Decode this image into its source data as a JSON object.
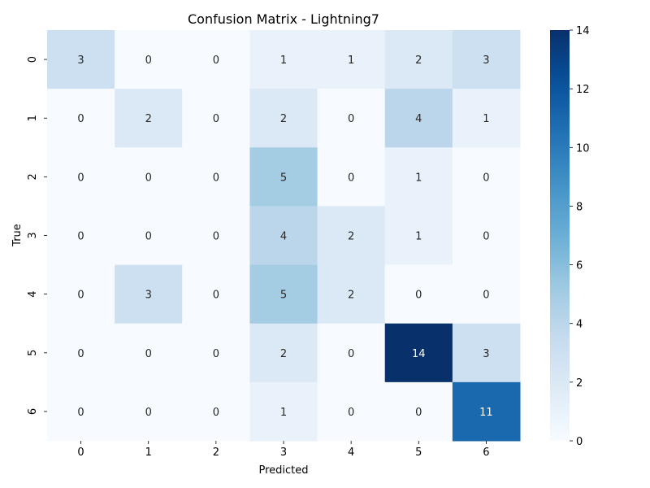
{
  "chart_data": {
    "type": "heatmap",
    "title": "Confusion Matrix - Lightning7",
    "xlabel": "Predicted",
    "ylabel": "True",
    "x_categories": [
      "0",
      "1",
      "2",
      "3",
      "4",
      "5",
      "6"
    ],
    "y_categories": [
      "0",
      "1",
      "2",
      "3",
      "4",
      "5",
      "6"
    ],
    "values": [
      [
        3,
        0,
        0,
        1,
        1,
        2,
        3
      ],
      [
        0,
        2,
        0,
        2,
        0,
        4,
        1
      ],
      [
        0,
        0,
        0,
        5,
        0,
        1,
        0
      ],
      [
        0,
        0,
        0,
        4,
        2,
        1,
        0
      ],
      [
        0,
        3,
        0,
        5,
        2,
        0,
        0
      ],
      [
        0,
        0,
        0,
        2,
        0,
        14,
        3
      ],
      [
        0,
        0,
        0,
        1,
        0,
        0,
        11
      ]
    ],
    "colormap": "Blues",
    "vmin": 0,
    "vmax": 14,
    "colorbar_ticks": [
      "0",
      "2",
      "4",
      "6",
      "8",
      "10",
      "12",
      "14"
    ],
    "colors": {
      "low": "#f7fbff",
      "high": "#08306b",
      "text_dark": "#262626",
      "text_light": "#ffffff"
    }
  }
}
